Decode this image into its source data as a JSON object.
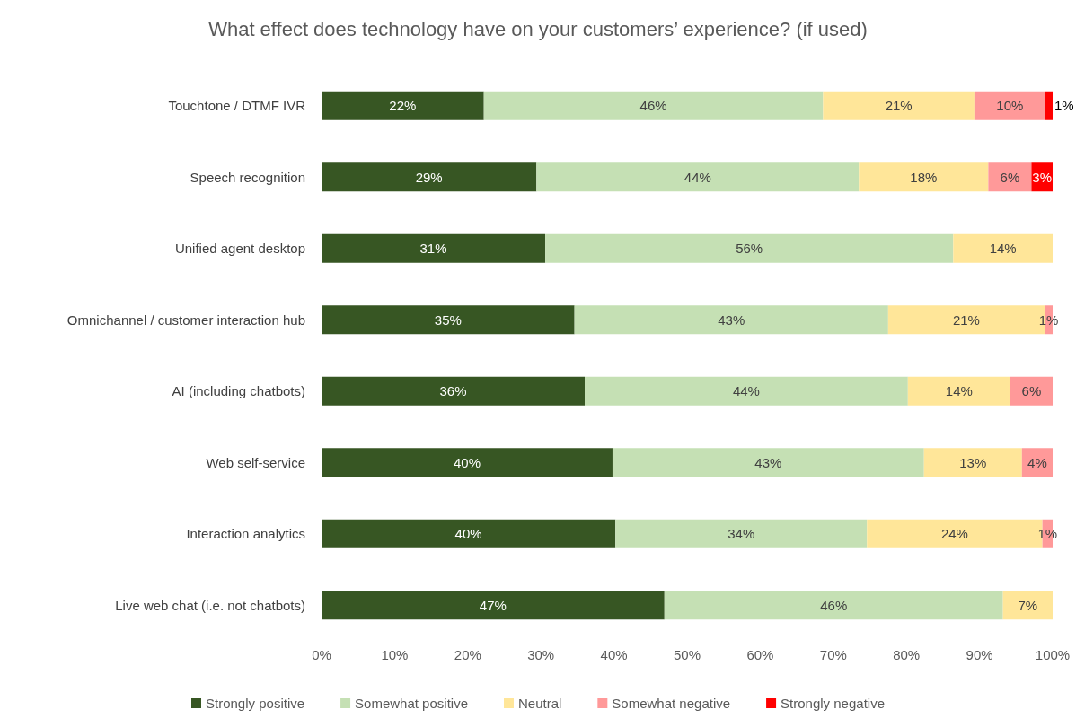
{
  "chart_data": {
    "type": "bar",
    "orientation": "horizontal",
    "stacked": true,
    "title": "What effect does technology have on your customers’ experience? (if used)",
    "categories": [
      "Touchtone / DTMF IVR",
      "Speech recognition",
      "Unified agent desktop",
      "Omnichannel / customer interaction hub",
      "AI (including chatbots)",
      "Web self-service",
      "Interaction analytics",
      "Live web chat (i.e. not chatbots)"
    ],
    "series": [
      {
        "name": "Strongly positive",
        "color": "#375623",
        "values": [
          22.2,
          29.4,
          30.6,
          34.6,
          36.0,
          39.8,
          40.2,
          46.9
        ],
        "value_labels": [
          "22%",
          "29%",
          "31%",
          "35%",
          "36%",
          "40%",
          "40%",
          "47%"
        ]
      },
      {
        "name": "Somewhat positive",
        "color": "#c5e0b4",
        "values": [
          46.4,
          44.1,
          55.8,
          42.9,
          44.2,
          42.6,
          34.4,
          46.3
        ],
        "value_labels": [
          "46%",
          "44%",
          "56%",
          "43%",
          "44%",
          "43%",
          "34%",
          "46%"
        ]
      },
      {
        "name": "Neutral",
        "color": "#ffe699",
        "values": [
          20.7,
          17.7,
          13.6,
          21.4,
          14.0,
          13.4,
          24.0,
          6.8
        ],
        "value_labels": [
          "21%",
          "18%",
          "14%",
          "21%",
          "14%",
          "13%",
          "24%",
          "7%"
        ]
      },
      {
        "name": "Somewhat negative",
        "color": "#ff9999",
        "values": [
          9.7,
          5.9,
          null,
          1.1,
          5.8,
          4.2,
          1.4,
          null
        ],
        "value_labels": [
          "10%",
          "6%",
          null,
          "1%",
          "6%",
          "4%",
          "1%",
          null
        ]
      },
      {
        "name": "Strongly negative",
        "color": "#ff0000",
        "values": [
          1.0,
          2.9,
          null,
          null,
          null,
          null,
          null,
          null
        ],
        "value_labels": [
          "1%",
          "3%",
          null,
          null,
          null,
          null,
          null,
          null
        ]
      }
    ],
    "xlim": [
      0,
      100
    ],
    "xticks": [
      {
        "value": 0,
        "label": "0%"
      },
      {
        "value": 10,
        "label": "10%"
      },
      {
        "value": 20,
        "label": "20%"
      },
      {
        "value": 30,
        "label": "30%"
      },
      {
        "value": 40,
        "label": "40%"
      },
      {
        "value": 50,
        "label": "50%"
      },
      {
        "value": 60,
        "label": "60%"
      },
      {
        "value": 70,
        "label": "70%"
      },
      {
        "value": 80,
        "label": "80%"
      },
      {
        "value": 90,
        "label": "90%"
      },
      {
        "value": 100,
        "label": "100%"
      }
    ],
    "grid": false,
    "legend": "bottom"
  }
}
